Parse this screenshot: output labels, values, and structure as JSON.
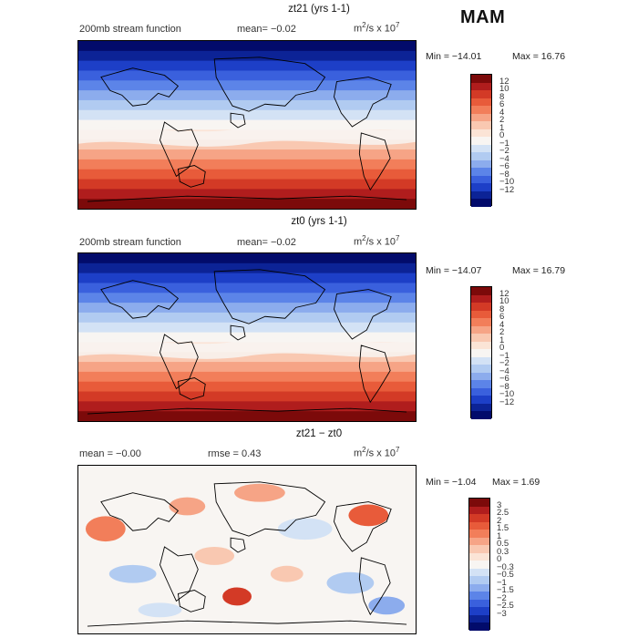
{
  "season": "MAM",
  "panels": [
    {
      "title": "zt21 (yrs 1-1)",
      "left_label": "200mb stream function",
      "stats": "mean=  −0.02",
      "units_base": "m",
      "units_exp": "2",
      "units_mid": "/s x 10",
      "units_exp2": "7",
      "min_label": "Min = −14.01",
      "max_label": "Max =   16.76",
      "kind": "field",
      "cbar_labels": [
        "12",
        "10",
        "8",
        "6",
        "4",
        "2",
        "1",
        "0",
        "−1",
        "−2",
        "−4",
        "−6",
        "−8",
        "−10",
        "−12"
      ],
      "cbar_colors": [
        "#7c0a0a",
        "#b01d1d",
        "#d33a26",
        "#e85b3a",
        "#f27e5a",
        "#f6a486",
        "#f9c8b1",
        "#fbe4d6",
        "#f8f5f2",
        "#d3e2f5",
        "#b1cbf1",
        "#8caced",
        "#5c84e8",
        "#3a60dd",
        "#1d3fc7",
        "#0c2396",
        "#020b6b"
      ]
    },
    {
      "title": "zt0 (yrs 1-1)",
      "left_label": "200mb stream function",
      "stats": "mean=  −0.02",
      "units_base": "m",
      "units_exp": "2",
      "units_mid": "/s x 10",
      "units_exp2": "7",
      "min_label": "Min = −14.07",
      "max_label": "Max =  16.79",
      "kind": "field",
      "cbar_labels": [
        "12",
        "10",
        "8",
        "6",
        "4",
        "2",
        "1",
        "0",
        "−1",
        "−2",
        "−4",
        "−6",
        "−8",
        "−10",
        "−12"
      ],
      "cbar_colors": [
        "#7c0a0a",
        "#b01d1d",
        "#d33a26",
        "#e85b3a",
        "#f27e5a",
        "#f6a486",
        "#f9c8b1",
        "#fbe4d6",
        "#f8f5f2",
        "#d3e2f5",
        "#b1cbf1",
        "#8caced",
        "#5c84e8",
        "#3a60dd",
        "#1d3fc7",
        "#0c2396",
        "#020b6b"
      ]
    },
    {
      "title": "zt21 − zt0",
      "left_label": "mean =  −0.00",
      "stats": "rmse =    0.43",
      "units_base": "m",
      "units_exp": "2",
      "units_mid": "/s x 10",
      "units_exp2": "7",
      "min_label": "Min = −1.04",
      "max_label": "Max =   1.69",
      "kind": "diff",
      "cbar_labels": [
        "3",
        "2.5",
        "2",
        "1.5",
        "1",
        "0.5",
        "0.3",
        "0",
        "−0.3",
        "−0.5",
        "−1",
        "−1.5",
        "−2",
        "−2.5",
        "−3"
      ],
      "cbar_colors": [
        "#7c0a0a",
        "#b01d1d",
        "#d33a26",
        "#e85b3a",
        "#f27e5a",
        "#f6a486",
        "#f9c8b1",
        "#fbe4d6",
        "#f8f5f2",
        "#d3e2f5",
        "#b1cbf1",
        "#8caced",
        "#5c84e8",
        "#3a60dd",
        "#1d3fc7",
        "#0c2396",
        "#020b6b"
      ]
    }
  ]
}
